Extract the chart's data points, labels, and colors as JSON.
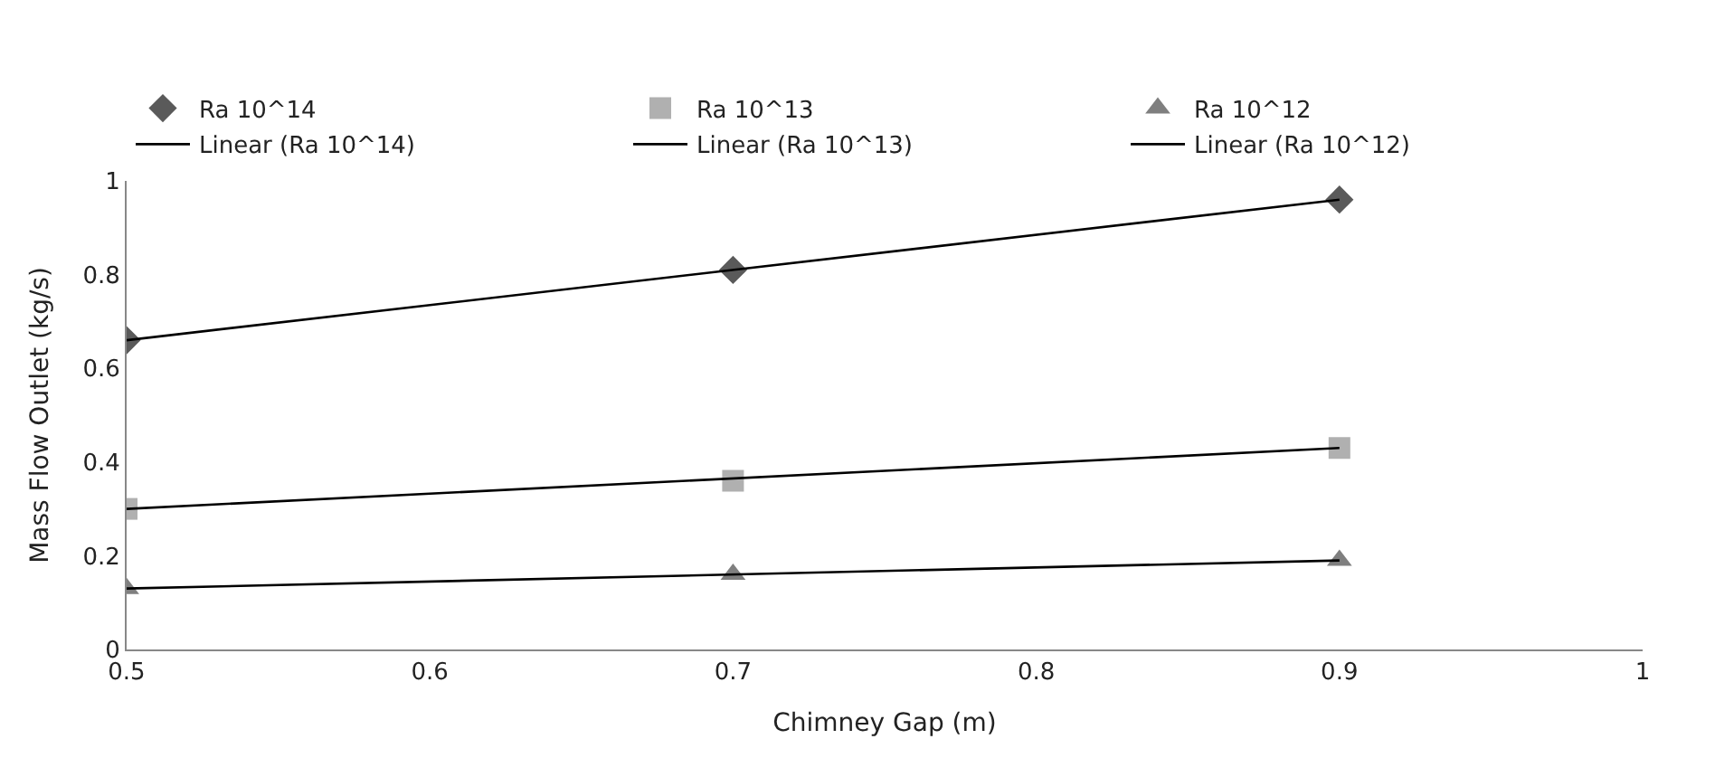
{
  "chart_data": {
    "type": "scatter",
    "xlabel": "Chimney Gap (m)",
    "ylabel": "Mass Flow Outlet (kg/s)",
    "xlim": [
      0.5,
      1
    ],
    "xticks": [
      0.5,
      0.6,
      0.7,
      0.8,
      0.9,
      1
    ],
    "ylim": [
      0,
      1
    ],
    "yticks": [
      0,
      0.2,
      0.4,
      0.6,
      0.8,
      1
    ],
    "legend": "top",
    "series": [
      {
        "name": "Ra 10^14",
        "color": "#5a5a5a",
        "marker": "diamond",
        "x": [
          0.5,
          0.7,
          0.9
        ],
        "values": [
          0.66,
          0.81,
          0.96
        ]
      },
      {
        "name": "Ra 10^13",
        "color": "#b0b0b0",
        "marker": "square",
        "x": [
          0.5,
          0.7,
          0.9
        ],
        "values": [
          0.3,
          0.36,
          0.43
        ]
      },
      {
        "name": "Ra 10^12",
        "color": "#7f7f7f",
        "marker": "triangle",
        "x": [
          0.5,
          0.7,
          0.9
        ],
        "values": [
          0.13,
          0.16,
          0.19
        ]
      },
      {
        "name": "Linear (Ra 10^14)",
        "type": "line",
        "color": "#000000",
        "marker": "none",
        "x": [
          0.5,
          0.9
        ],
        "values": [
          0.66,
          0.96
        ]
      },
      {
        "name": "Linear (Ra 10^13)",
        "type": "line",
        "color": "#000000",
        "marker": "none",
        "x": [
          0.5,
          0.9
        ],
        "values": [
          0.3,
          0.43
        ]
      },
      {
        "name": "Linear (Ra 10^12)",
        "type": "line",
        "color": "#000000",
        "marker": "none",
        "x": [
          0.5,
          0.9
        ],
        "values": [
          0.13,
          0.19
        ]
      }
    ]
  }
}
